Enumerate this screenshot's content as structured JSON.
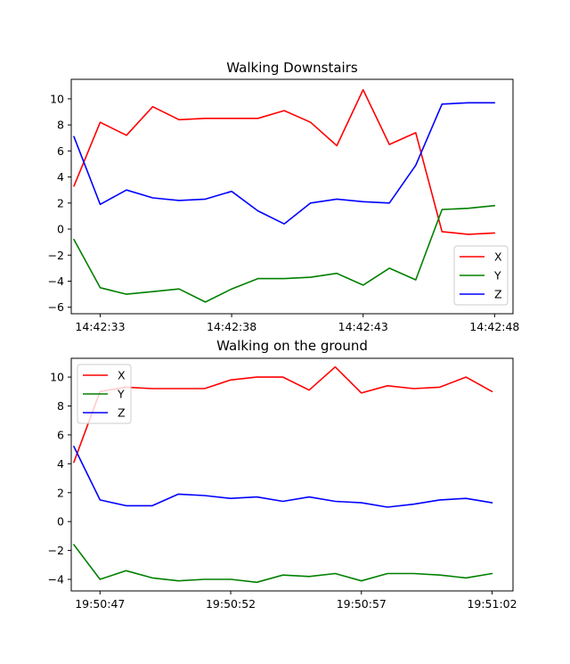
{
  "chart_data": [
    {
      "type": "line",
      "title": "Walking Downstairs",
      "xlabel": "",
      "ylabel": "",
      "x_tick_labels": [
        "14:42:33",
        "14:42:38",
        "14:42:43",
        "14:42:48"
      ],
      "x_tick_positions": [
        1,
        6,
        11,
        16
      ],
      "y_ticks": [
        -6,
        -4,
        -2,
        0,
        2,
        4,
        6,
        8,
        10
      ],
      "xlim": [
        -0.1,
        16.7
      ],
      "ylim": [
        -6.5,
        11.5
      ],
      "grid": false,
      "legend_position": "lower-right",
      "x": [
        0,
        1,
        2,
        3,
        4,
        5,
        6,
        7,
        8,
        9,
        10,
        11,
        12,
        13,
        14,
        15,
        16
      ],
      "series": [
        {
          "name": "X",
          "color": "#ff0000",
          "values": [
            3.3,
            8.2,
            7.2,
            9.4,
            8.4,
            8.5,
            8.5,
            8.5,
            9.1,
            8.2,
            6.4,
            10.7,
            6.5,
            7.4,
            -0.2,
            -0.4,
            -0.3
          ]
        },
        {
          "name": "Y",
          "color": "#008000",
          "values": [
            -0.8,
            -4.5,
            -5.0,
            -4.8,
            -4.6,
            -5.6,
            -4.6,
            -3.8,
            -3.8,
            -3.7,
            -3.4,
            -4.3,
            -3.0,
            -3.9,
            1.5,
            1.6,
            1.8
          ]
        },
        {
          "name": "Z",
          "color": "#0000ff",
          "values": [
            7.1,
            1.9,
            3.0,
            2.4,
            2.2,
            2.3,
            2.9,
            1.4,
            0.4,
            2.0,
            2.3,
            2.1,
            2.0,
            4.9,
            9.6,
            9.7,
            9.7
          ]
        }
      ]
    },
    {
      "type": "line",
      "title": "Walking on the ground",
      "xlabel": "",
      "ylabel": "",
      "x_tick_labels": [
        "19:50:47",
        "19:50:52",
        "19:50:57",
        "19:51:02"
      ],
      "x_tick_positions": [
        1,
        6,
        11,
        16
      ],
      "y_ticks": [
        -4,
        -2,
        0,
        2,
        4,
        6,
        8,
        10
      ],
      "xlim": [
        -0.1,
        16.8
      ],
      "ylim": [
        -4.8,
        11.3
      ],
      "grid": false,
      "legend_position": "upper-left",
      "x": [
        0,
        1,
        2,
        3,
        4,
        5,
        6,
        7,
        8,
        9,
        10,
        11,
        12,
        13,
        14,
        15,
        16
      ],
      "series": [
        {
          "name": "X",
          "color": "#ff0000",
          "values": [
            4.1,
            9.0,
            9.3,
            9.2,
            9.2,
            9.2,
            9.8,
            10.0,
            10.0,
            9.1,
            10.7,
            8.9,
            9.4,
            9.2,
            9.3,
            10.0,
            9.0
          ]
        },
        {
          "name": "Y",
          "color": "#008000",
          "values": [
            -1.6,
            -4.0,
            -3.4,
            -3.9,
            -4.1,
            -4.0,
            -4.0,
            -4.2,
            -3.7,
            -3.8,
            -3.6,
            -4.1,
            -3.6,
            -3.6,
            -3.7,
            -3.9,
            -3.6
          ]
        },
        {
          "name": "Z",
          "color": "#0000ff",
          "values": [
            5.2,
            1.5,
            1.1,
            1.1,
            1.9,
            1.8,
            1.6,
            1.7,
            1.4,
            1.7,
            1.4,
            1.3,
            1.0,
            1.2,
            1.5,
            1.6,
            1.3
          ]
        }
      ]
    }
  ]
}
